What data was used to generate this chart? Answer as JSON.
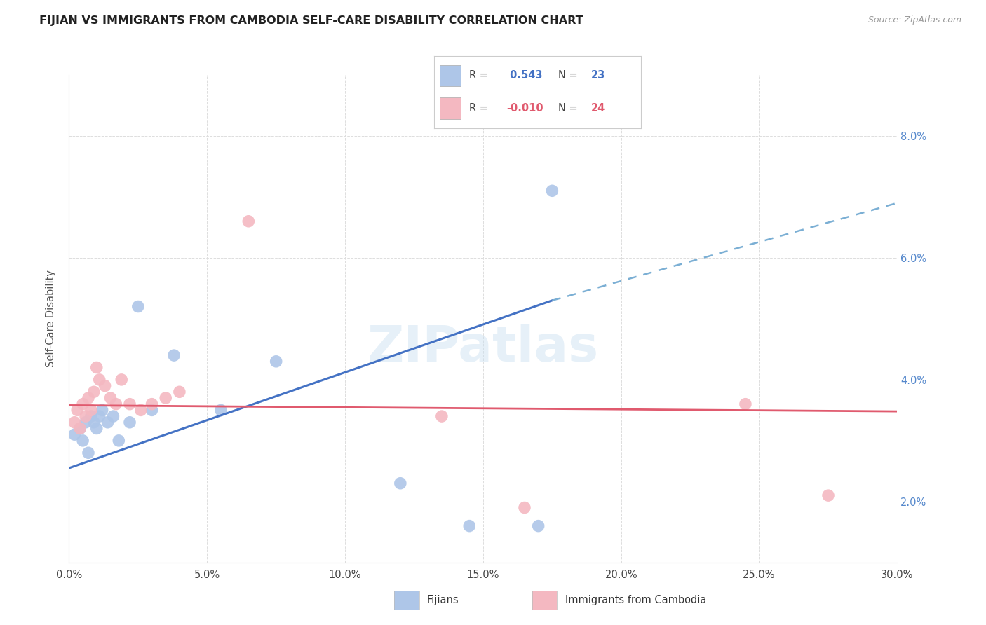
{
  "title": "FIJIAN VS IMMIGRANTS FROM CAMBODIA SELF-CARE DISABILITY CORRELATION CHART",
  "source": "Source: ZipAtlas.com",
  "ylabel": "Self-Care Disability",
  "yticks": [
    2.0,
    4.0,
    6.0,
    8.0
  ],
  "xlim": [
    0.0,
    30.0
  ],
  "ylim": [
    1.0,
    9.0
  ],
  "legend_blue_r": "0.543",
  "legend_blue_n": "23",
  "legend_pink_r": "-0.010",
  "legend_pink_n": "24",
  "fijian_color": "#aec6e8",
  "cambodia_color": "#f4b8c1",
  "trendline_blue": "#4472c4",
  "trendline_pink": "#e05a6e",
  "trendline_dashed": "#7bafd4",
  "fijian_x": [
    0.2,
    0.4,
    0.5,
    0.6,
    0.7,
    0.8,
    0.9,
    1.0,
    1.1,
    1.2,
    1.4,
    1.6,
    1.8,
    2.2,
    2.5,
    3.0,
    3.8,
    5.5,
    7.5,
    12.0,
    14.5,
    17.0,
    17.5
  ],
  "fijian_y": [
    3.1,
    3.2,
    3.0,
    3.3,
    2.8,
    3.4,
    3.3,
    3.2,
    3.4,
    3.5,
    3.3,
    3.4,
    3.0,
    3.3,
    5.2,
    3.5,
    4.4,
    3.5,
    4.3,
    2.3,
    1.6,
    1.6,
    7.1
  ],
  "cambodia_x": [
    0.2,
    0.3,
    0.4,
    0.5,
    0.6,
    0.7,
    0.8,
    0.9,
    1.0,
    1.1,
    1.3,
    1.5,
    1.7,
    1.9,
    2.2,
    2.6,
    3.0,
    3.5,
    4.0,
    6.5,
    13.5,
    16.5,
    24.5,
    27.5
  ],
  "cambodia_y": [
    3.3,
    3.5,
    3.2,
    3.6,
    3.4,
    3.7,
    3.5,
    3.8,
    4.2,
    4.0,
    3.9,
    3.7,
    3.6,
    4.0,
    3.6,
    3.5,
    3.6,
    3.7,
    3.8,
    6.6,
    3.4,
    1.9,
    3.6,
    2.1
  ],
  "blue_trend_x0": 0.0,
  "blue_trend_y0": 2.55,
  "blue_trend_x1": 17.5,
  "blue_trend_y1": 5.3,
  "blue_dash_x1": 30.0,
  "blue_dash_y1": 6.9,
  "pink_trend_y": 3.55,
  "watermark_text": "ZIPatlas",
  "watermark_color": "#c8dff0",
  "watermark_alpha": 0.45,
  "watermark_fontsize": 52
}
